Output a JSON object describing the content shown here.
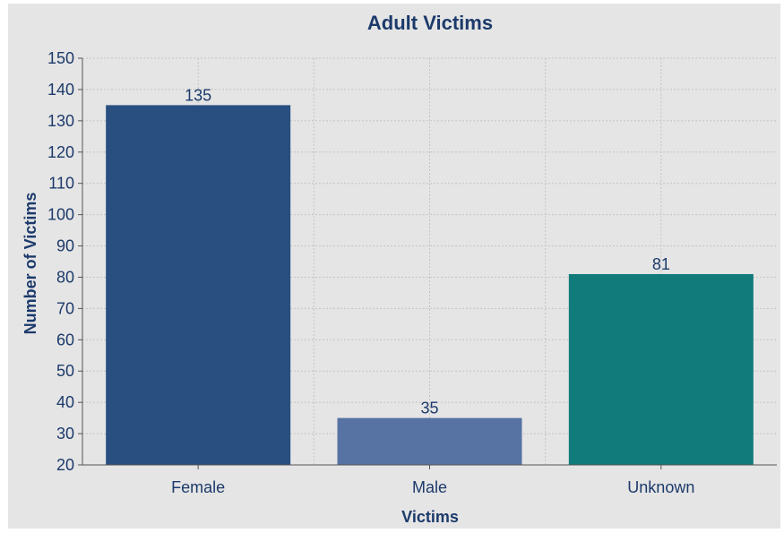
{
  "chart_data": {
    "type": "bar",
    "title": "Adult Victims",
    "xlabel": "Victims",
    "ylabel": "Number of Victims",
    "categories": [
      "Female",
      "Male",
      "Unknown"
    ],
    "values": [
      135,
      35,
      81
    ],
    "data_labels": [
      "135",
      "35",
      "81"
    ],
    "colors": [
      "#284f80",
      "#5673a3",
      "#117a7a"
    ],
    "ylim": [
      20,
      150
    ],
    "yticks": [
      20,
      30,
      40,
      50,
      60,
      70,
      80,
      90,
      100,
      110,
      120,
      130,
      140,
      150
    ],
    "grid": true,
    "legend": false
  }
}
